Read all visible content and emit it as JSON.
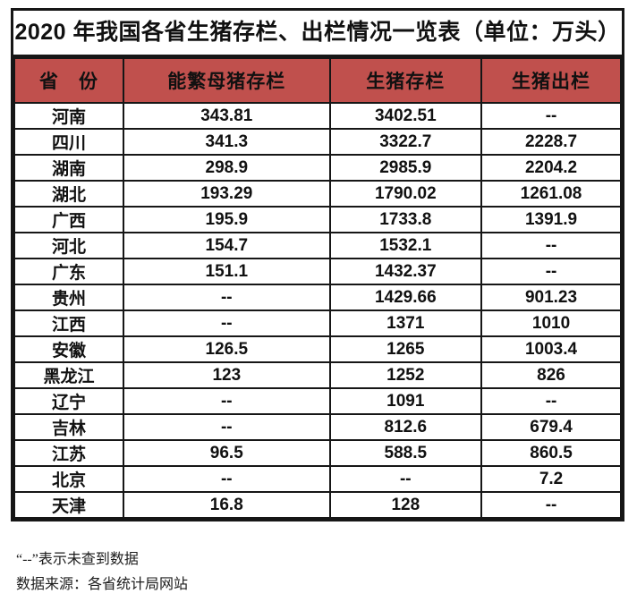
{
  "title": "2020 年我国各省生猪存栏、出栏情况一览表（单位：万头）",
  "table": {
    "columns": [
      "省　份",
      "能繁母猪存栏",
      "生猪存栏",
      "生猪出栏"
    ],
    "rows": [
      [
        "河南",
        "343.81",
        "3402.51",
        "--"
      ],
      [
        "四川",
        "341.3",
        "3322.7",
        "2228.7"
      ],
      [
        "湖南",
        "298.9",
        "2985.9",
        "2204.2"
      ],
      [
        "湖北",
        "193.29",
        "1790.02",
        "1261.08"
      ],
      [
        "广西",
        "195.9",
        "1733.8",
        "1391.9"
      ],
      [
        "河北",
        "154.7",
        "1532.1",
        "--"
      ],
      [
        "广东",
        "151.1",
        "1432.37",
        "--"
      ],
      [
        "贵州",
        "--",
        "1429.66",
        "901.23"
      ],
      [
        "江西",
        "--",
        "1371",
        "1010"
      ],
      [
        "安徽",
        "126.5",
        "1265",
        "1003.4"
      ],
      [
        "黑龙江",
        "123",
        "1252",
        "826"
      ],
      [
        "辽宁",
        "--",
        "1091",
        "--"
      ],
      [
        "吉林",
        "--",
        "812.6",
        "679.4"
      ],
      [
        "江苏",
        "96.5",
        "588.5",
        "860.5"
      ],
      [
        "北京",
        "--",
        "--",
        "7.2"
      ],
      [
        "天津",
        "16.8",
        "128",
        "--"
      ]
    ]
  },
  "notes": {
    "line1": "“--”表示未查到数据",
    "line2": "数据来源：各省统计局网站"
  },
  "colors": {
    "header_bg": "#C0504D",
    "border": "#161616",
    "text": "#111111"
  },
  "missing_value_marker": "--",
  "chart_data": {
    "type": "table",
    "title": "2020 年我国各省生猪存栏、出栏情况一览表（单位：万头）",
    "unit": "万头",
    "columns": [
      "省份",
      "能繁母猪存栏",
      "生猪存栏",
      "生猪出栏"
    ],
    "rows": [
      {
        "province": "河南",
        "sow_stock": 343.81,
        "pig_stock": 3402.51,
        "pig_slaughter": null
      },
      {
        "province": "四川",
        "sow_stock": 341.3,
        "pig_stock": 3322.7,
        "pig_slaughter": 2228.7
      },
      {
        "province": "湖南",
        "sow_stock": 298.9,
        "pig_stock": 2985.9,
        "pig_slaughter": 2204.2
      },
      {
        "province": "湖北",
        "sow_stock": 193.29,
        "pig_stock": 1790.02,
        "pig_slaughter": 1261.08
      },
      {
        "province": "广西",
        "sow_stock": 195.9,
        "pig_stock": 1733.8,
        "pig_slaughter": 1391.9
      },
      {
        "province": "河北",
        "sow_stock": 154.7,
        "pig_stock": 1532.1,
        "pig_slaughter": null
      },
      {
        "province": "广东",
        "sow_stock": 151.1,
        "pig_stock": 1432.37,
        "pig_slaughter": null
      },
      {
        "province": "贵州",
        "sow_stock": null,
        "pig_stock": 1429.66,
        "pig_slaughter": 901.23
      },
      {
        "province": "江西",
        "sow_stock": null,
        "pig_stock": 1371,
        "pig_slaughter": 1010
      },
      {
        "province": "安徽",
        "sow_stock": 126.5,
        "pig_stock": 1265,
        "pig_slaughter": 1003.4
      },
      {
        "province": "黑龙江",
        "sow_stock": 123,
        "pig_stock": 1252,
        "pig_slaughter": 826
      },
      {
        "province": "辽宁",
        "sow_stock": null,
        "pig_stock": 1091,
        "pig_slaughter": null
      },
      {
        "province": "吉林",
        "sow_stock": null,
        "pig_stock": 812.6,
        "pig_slaughter": 679.4
      },
      {
        "province": "江苏",
        "sow_stock": 96.5,
        "pig_stock": 588.5,
        "pig_slaughter": 860.5
      },
      {
        "province": "北京",
        "sow_stock": null,
        "pig_stock": null,
        "pig_slaughter": 7.2
      },
      {
        "province": "天津",
        "sow_stock": 16.8,
        "pig_stock": 128,
        "pig_slaughter": null
      }
    ],
    "notes": [
      "“--”表示未查到数据",
      "数据来源：各省统计局网站"
    ]
  }
}
